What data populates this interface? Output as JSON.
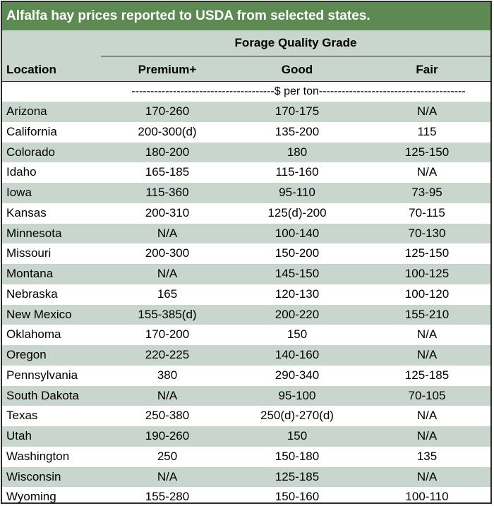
{
  "title": "Alfalfa hay prices reported to USDA from selected states.",
  "header": {
    "group_label": "Forage Quality Grade",
    "location_label": "Location",
    "columns": [
      "Premium+",
      "Good",
      "Fair"
    ]
  },
  "unit_line": "--------------------------------------$ per ton---------------------------------------",
  "colors": {
    "title_bg": "#5c8a52",
    "shade": "#c9d6cd"
  },
  "rows": [
    {
      "location": "Arizona",
      "premium": "170-260",
      "good": "170-175",
      "fair": "N/A"
    },
    {
      "location": "California",
      "premium": "200-300(d)",
      "good": "135-200",
      "fair": "115"
    },
    {
      "location": "Colorado",
      "premium": "180-200",
      "good": "180",
      "fair": "125-150"
    },
    {
      "location": "Idaho",
      "premium": "165-185",
      "good": "115-160",
      "fair": "N/A"
    },
    {
      "location": "Iowa",
      "premium": "115-360",
      "good": "95-110",
      "fair": "73-95"
    },
    {
      "location": "Kansas",
      "premium": "200-310",
      "good": "125(d)-200",
      "fair": "70-115"
    },
    {
      "location": "Minnesota",
      "premium": "N/A",
      "good": "100-140",
      "fair": "70-130"
    },
    {
      "location": "Missouri",
      "premium": "200-300",
      "good": "150-200",
      "fair": "125-150"
    },
    {
      "location": "Montana",
      "premium": "N/A",
      "good": "145-150",
      "fair": "100-125"
    },
    {
      "location": "Nebraska",
      "premium": "165",
      "good": "120-130",
      "fair": "100-120"
    },
    {
      "location": "New Mexico",
      "premium": "155-385(d)",
      "good": "200-220",
      "fair": "155-210"
    },
    {
      "location": "Oklahoma",
      "premium": "170-200",
      "good": "150",
      "fair": "N/A"
    },
    {
      "location": "Oregon",
      "premium": "220-225",
      "good": "140-160",
      "fair": "N/A"
    },
    {
      "location": "Pennsylvania",
      "premium": "380",
      "good": "290-340",
      "fair": "125-185"
    },
    {
      "location": "South Dakota",
      "premium": "N/A",
      "good": "95-100",
      "fair": "70-105"
    },
    {
      "location": "Texas",
      "premium": "250-380",
      "good": "250(d)-270(d)",
      "fair": "N/A"
    },
    {
      "location": "Utah",
      "premium": "190-260",
      "good": "150",
      "fair": "N/A"
    },
    {
      "location": "Washington",
      "premium": "250",
      "good": "150-180",
      "fair": "135"
    },
    {
      "location": "Wisconsin",
      "premium": "N/A",
      "good": "125-185",
      "fair": "N/A"
    },
    {
      "location": "Wyoming",
      "premium": "155-280",
      "good": "150-160",
      "fair": "100-110"
    }
  ]
}
